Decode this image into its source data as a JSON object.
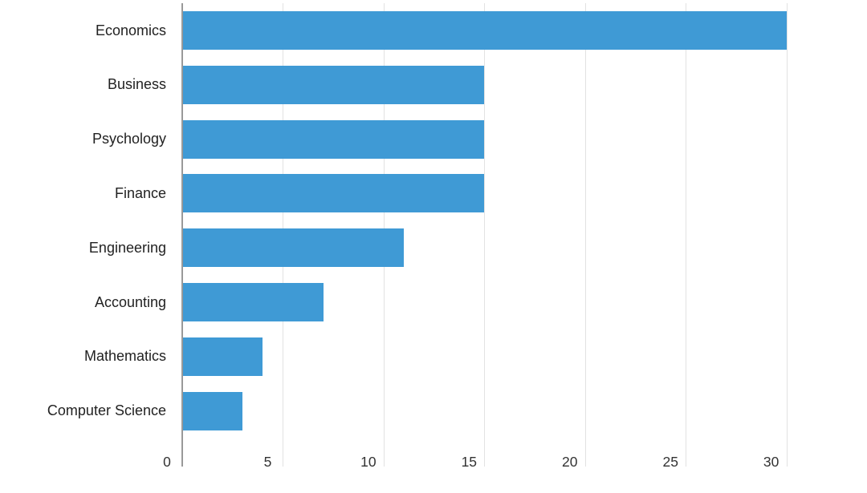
{
  "chart_data": {
    "type": "bar",
    "orientation": "horizontal",
    "title": "",
    "xlabel": "",
    "ylabel": "",
    "categories": [
      "Economics",
      "Business",
      "Psychology",
      "Finance",
      "Engineering",
      "Accounting",
      "Mathematics",
      "Computer Science"
    ],
    "values": [
      30,
      15,
      15,
      15,
      11,
      7,
      4,
      3
    ],
    "x_ticks": [
      0,
      5,
      10,
      15,
      20,
      25,
      30
    ],
    "x_tick_labels": [
      "0",
      "5",
      "10",
      "15",
      "20",
      "25",
      "30"
    ],
    "xlim": [
      0,
      34
    ],
    "grid": "vertical-only",
    "legend": "none",
    "colors": {
      "bar": "#3F9AD5",
      "gridline": "#E2E2E2",
      "axis_line": "#999999",
      "category_label": "#222222",
      "tick_label": "#333333",
      "background": "#FFFFFF"
    }
  }
}
